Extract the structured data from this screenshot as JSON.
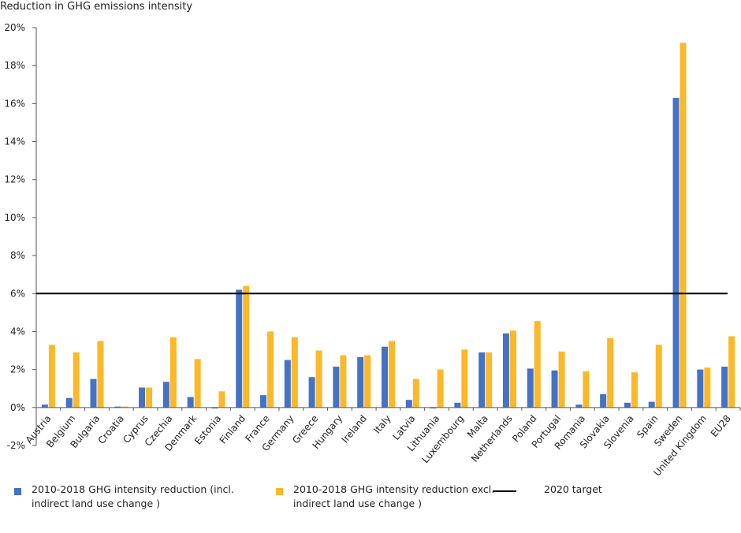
{
  "chart_data": {
    "type": "bar",
    "y_axis_label": "Reduction in GHG emissions intensity",
    "categories": [
      "Austria",
      "Belgium",
      "Bulgaria",
      "Croatia",
      "Cyprus",
      "Czechia",
      "Denmark",
      "Estonia",
      "Finland",
      "France",
      "Germany",
      "Greece",
      "Hungary",
      "Ireland",
      "Italy",
      "Latvia",
      "Lithuania",
      "Luxembourg",
      "Malta",
      "Netherlands",
      "Poland",
      "Portugal",
      "Romania",
      "Slovakia",
      "Slovenia",
      "Spain",
      "Sweden",
      "United Kingdom",
      "EU28"
    ],
    "series": [
      {
        "name": "2010-2018 GHG intensity reduction (incl. indirect land use change )",
        "color": "#4472c4",
        "values": [
          0.15,
          0.5,
          1.5,
          0.05,
          1.05,
          1.35,
          0.55,
          -0.05,
          6.2,
          0.65,
          2.5,
          1.6,
          2.15,
          2.65,
          3.2,
          0.4,
          -0.05,
          0.25,
          2.9,
          3.9,
          2.05,
          1.95,
          0.15,
          0.7,
          0.25,
          0.3,
          16.3,
          2.0,
          2.15
        ]
      },
      {
        "name": "2010-2018 GHG intensity reduction excl. indirect land use change )",
        "color": "#fbb829",
        "values": [
          3.3,
          2.9,
          3.5,
          0.05,
          1.05,
          3.7,
          2.55,
          0.85,
          6.4,
          4.0,
          3.7,
          3.0,
          2.75,
          2.75,
          3.5,
          1.5,
          2.0,
          3.05,
          2.9,
          4.05,
          4.55,
          2.95,
          1.9,
          3.65,
          1.85,
          3.3,
          19.2,
          2.1,
          3.75
        ]
      }
    ],
    "target": {
      "name": "2020 target",
      "value": 6,
      "color": "#000000"
    },
    "ylim": [
      -2,
      20
    ],
    "yticks": [
      {
        "value": -2,
        "label": "-2%"
      },
      {
        "value": 0,
        "label": "0%"
      },
      {
        "value": 2,
        "label": "2%"
      },
      {
        "value": 4,
        "label": "4%"
      },
      {
        "value": 6,
        "label": "6%"
      },
      {
        "value": 8,
        "label": "8%"
      },
      {
        "value": 10,
        "label": "10%"
      },
      {
        "value": 12,
        "label": "12%"
      },
      {
        "value": 14,
        "label": "14%"
      },
      {
        "value": 16,
        "label": "16%"
      },
      {
        "value": 18,
        "label": "18%"
      },
      {
        "value": 20,
        "label": "20%"
      }
    ],
    "grid": false
  }
}
